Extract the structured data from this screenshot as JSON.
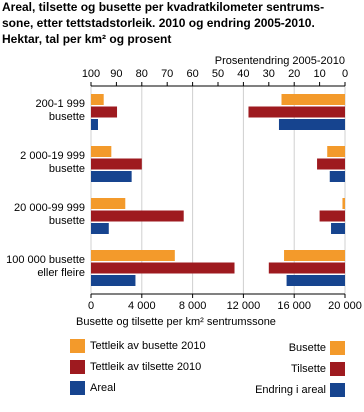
{
  "chart_data": {
    "type": "bar",
    "title": [
      "Areal, tilsette og busette per kvadratkilometer sentrums-",
      "sone, etter tettstadstorleik. 2010 og endring 2005-2010.",
      "Hektar, tal per km² og prosent"
    ],
    "xlabel": "Busette og tilsette per km² sentrumssone",
    "x2label": "Prosentendring 2005-2010",
    "categories": [
      [
        "200-1 999",
        "busette"
      ],
      [
        "2 000-19 999",
        "busette"
      ],
      [
        "20 000-99 999",
        "busette"
      ],
      [
        "100 000 busette",
        "eller fleire"
      ]
    ],
    "series": [
      {
        "name": "Tettleik av busette 2010",
        "color": "#f39a2b",
        "values": [
          1000,
          1600,
          2700,
          6600
        ]
      },
      {
        "name": "Tettleik av tilsette 2010",
        "color": "#9e1a1f",
        "values": [
          2050,
          4000,
          7300,
          11300
        ]
      },
      {
        "name": "Areal",
        "color": "#16448f",
        "values": [
          550,
          3200,
          1400,
          3500
        ]
      },
      {
        "name": "Busette",
        "color": "#f39a2b",
        "axis": "x2",
        "values": [
          25,
          7,
          1,
          24
        ]
      },
      {
        "name": "Tilsette",
        "color": "#9e1a1f",
        "axis": "x2",
        "values": [
          38,
          11,
          10,
          30
        ]
      },
      {
        "name": "Endring i areal",
        "color": "#16448f",
        "axis": "x2",
        "values": [
          26,
          6,
          5.5,
          23
        ]
      }
    ],
    "xlim": [
      0,
      20000
    ],
    "xticks": [
      0,
      {
        "value": 4000,
        "label": "4 000"
      },
      {
        "value": 8000,
        "label": "8 000"
      },
      {
        "value": 12000,
        "label": "12 000"
      },
      {
        "value": 16000,
        "label": "16 000"
      },
      {
        "value": 20000,
        "label": "20 000"
      }
    ],
    "x2lim": [
      100,
      0
    ],
    "x2ticks": [
      100,
      90,
      80,
      70,
      60,
      50,
      40,
      30,
      20,
      10,
      0
    ],
    "grid": true
  }
}
